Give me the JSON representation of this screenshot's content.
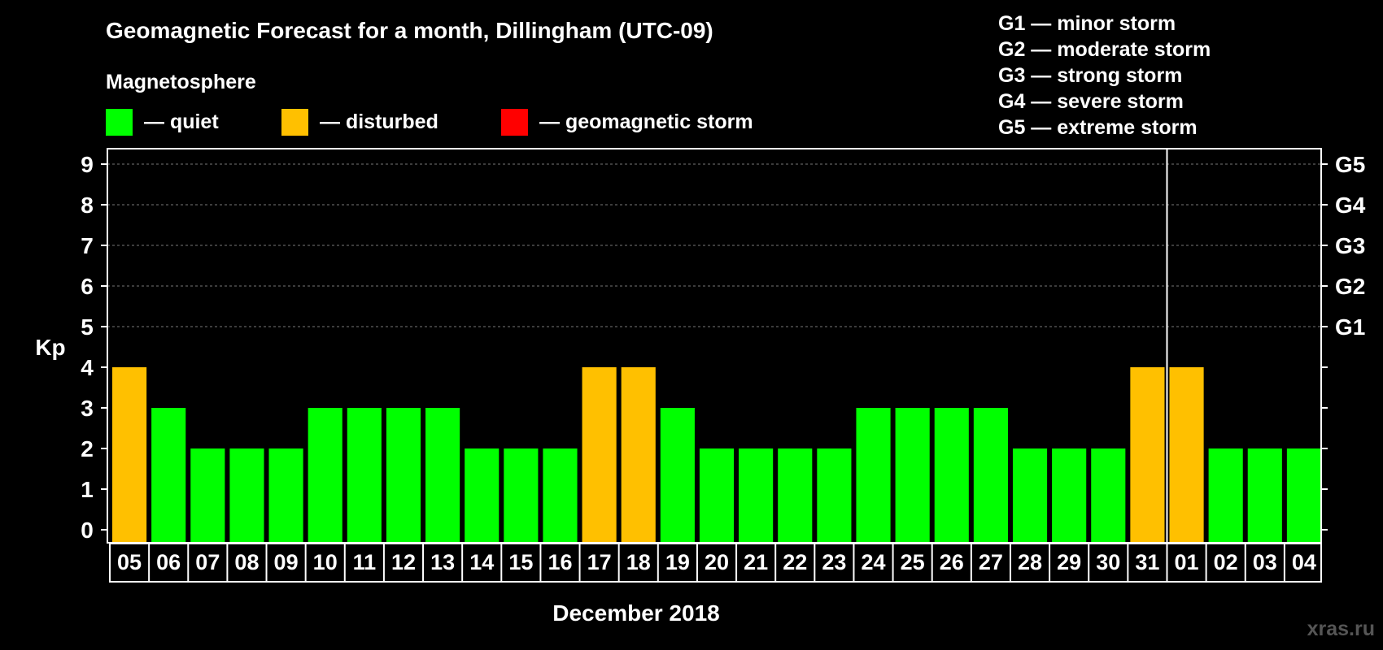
{
  "chart_data": {
    "type": "bar",
    "title": "Geomagnetic Forecast for a month, Dillingham (UTC-09)",
    "ylabel": "Kp",
    "xlabel": "December 2018",
    "ylim": [
      0,
      9
    ],
    "yticks": [
      0,
      1,
      2,
      3,
      4,
      5,
      6,
      7,
      8,
      9
    ],
    "grid": true,
    "categories": [
      "05",
      "06",
      "07",
      "08",
      "09",
      "10",
      "11",
      "12",
      "13",
      "14",
      "15",
      "16",
      "17",
      "18",
      "19",
      "20",
      "21",
      "22",
      "23",
      "24",
      "25",
      "26",
      "27",
      "28",
      "29",
      "30",
      "31",
      "01",
      "02",
      "03",
      "04"
    ],
    "values": [
      4,
      3,
      2,
      2,
      2,
      3,
      3,
      3,
      3,
      2,
      2,
      2,
      4,
      4,
      3,
      2,
      2,
      2,
      2,
      3,
      3,
      3,
      3,
      2,
      2,
      2,
      4,
      4,
      2,
      2,
      2
    ],
    "legend": {
      "heading": "Magnetosphere",
      "items": [
        {
          "label": "— quiet",
          "color": "#00ff00"
        },
        {
          "label": "— disturbed",
          "color": "#ffc000"
        },
        {
          "label": "— geomagnetic storm",
          "color": "#ff0000"
        }
      ]
    },
    "storm_scale": [
      {
        "level": "G1",
        "kp": 5,
        "text": "G1 — minor storm"
      },
      {
        "level": "G2",
        "kp": 6,
        "text": "G2 — moderate storm"
      },
      {
        "level": "G3",
        "kp": 7,
        "text": "G3 — strong storm"
      },
      {
        "level": "G4",
        "kp": 8,
        "text": "G4 — severe storm"
      },
      {
        "level": "G5",
        "kp": 9,
        "text": "G5 — extreme storm"
      }
    ],
    "month_divider_after": "31"
  },
  "watermark": "xras.ru"
}
